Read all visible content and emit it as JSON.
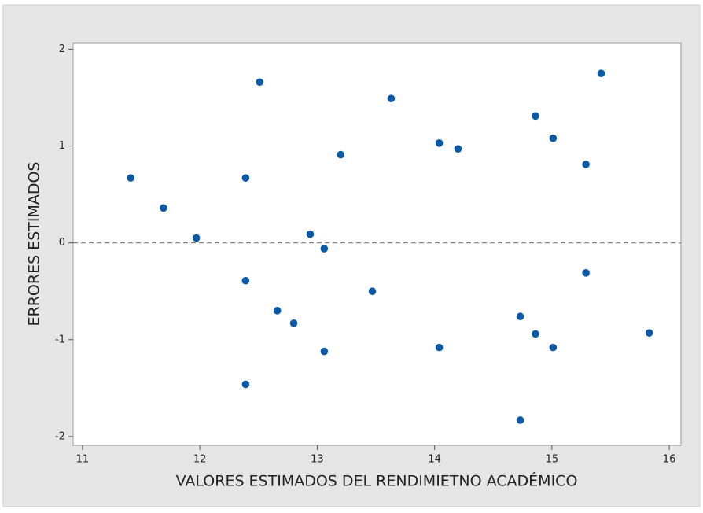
{
  "chart_data": {
    "type": "scatter",
    "x_label": "VALORES ESTIMADOS DEL RENDIMIETNO ACADÉMICO",
    "y_label": "ERRORES ESTIMADOS",
    "color": "#0a5aa8",
    "hline": 0,
    "xlim": [
      10.92,
      16.1
    ],
    "xticks": [
      11,
      12,
      13,
      14,
      15,
      16
    ],
    "ylim": [
      -2.09,
      2.06
    ],
    "yticks": [
      -2,
      -1,
      0,
      1,
      2
    ],
    "x": [
      11.41,
      11.69,
      11.97,
      12.39,
      12.39,
      12.39,
      12.51,
      12.66,
      12.8,
      12.94,
      13.06,
      13.06,
      13.2,
      13.47,
      13.63,
      14.04,
      14.04,
      14.2,
      14.73,
      14.73,
      14.86,
      14.86,
      15.01,
      15.01,
      15.29,
      15.29,
      15.42,
      15.83
    ],
    "values": [
      0.67,
      0.36,
      0.05,
      0.67,
      -0.39,
      -1.46,
      1.66,
      -0.7,
      -0.83,
      0.09,
      -0.06,
      -1.12,
      0.91,
      -0.5,
      1.49,
      1.03,
      -1.08,
      0.97,
      -0.76,
      -1.83,
      1.31,
      -0.94,
      1.08,
      -1.08,
      0.81,
      -0.31,
      1.75,
      -0.93
    ]
  }
}
